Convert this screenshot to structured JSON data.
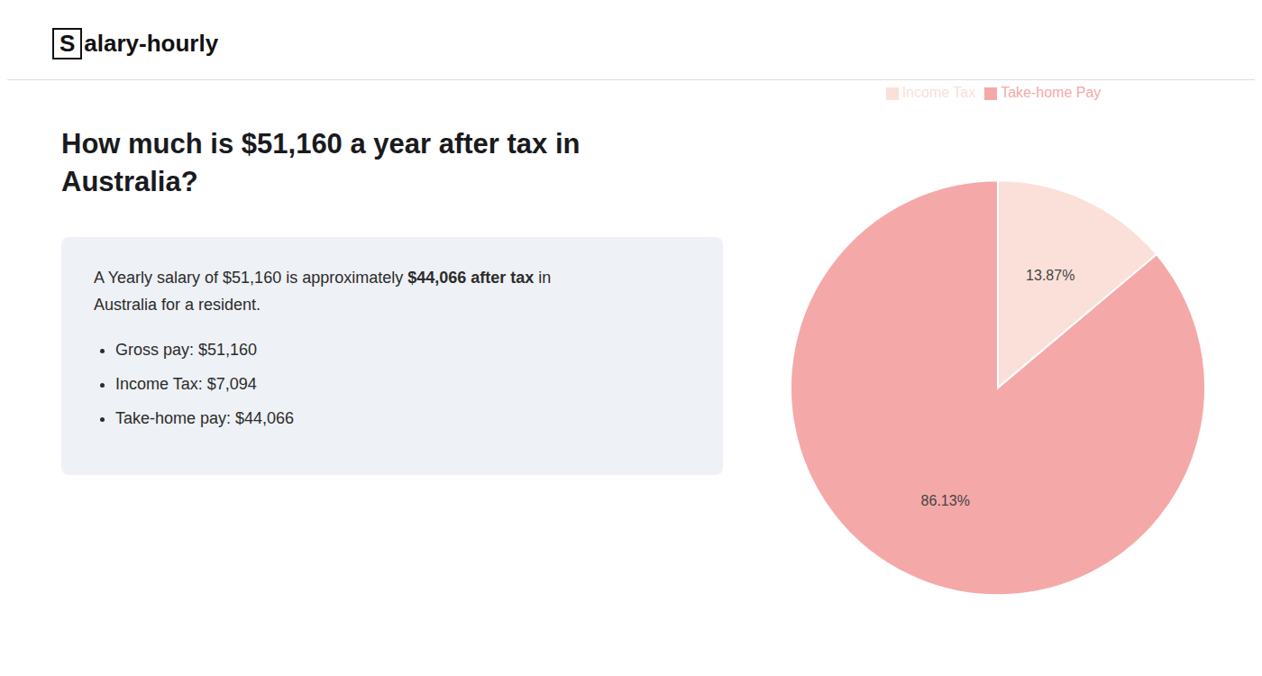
{
  "chart_data": {
    "type": "pie",
    "title": "How much is $51,160 a year after tax in\nAustralia?",
    "categories": [
      "Income Tax",
      "Take-home Pay"
    ],
    "values": [
      13.87,
      86.13
    ],
    "value_labels": [
      "13.87%",
      "86.13%"
    ],
    "data_labels": true,
    "colors": [
      "#fae0d8",
      "#f5a8a8"
    ],
    "legend": "top",
    "annotations": [
      "S",
      "alary-hourly",
      "A Yearly salary of $51,160 is approximately ",
      "$44,066 after tax",
      " in",
      "Australia for a resident.",
      "Gross pay: $51,160",
      "Income Tax: $7,094",
      "Take-home pay: $44,066"
    ]
  }
}
